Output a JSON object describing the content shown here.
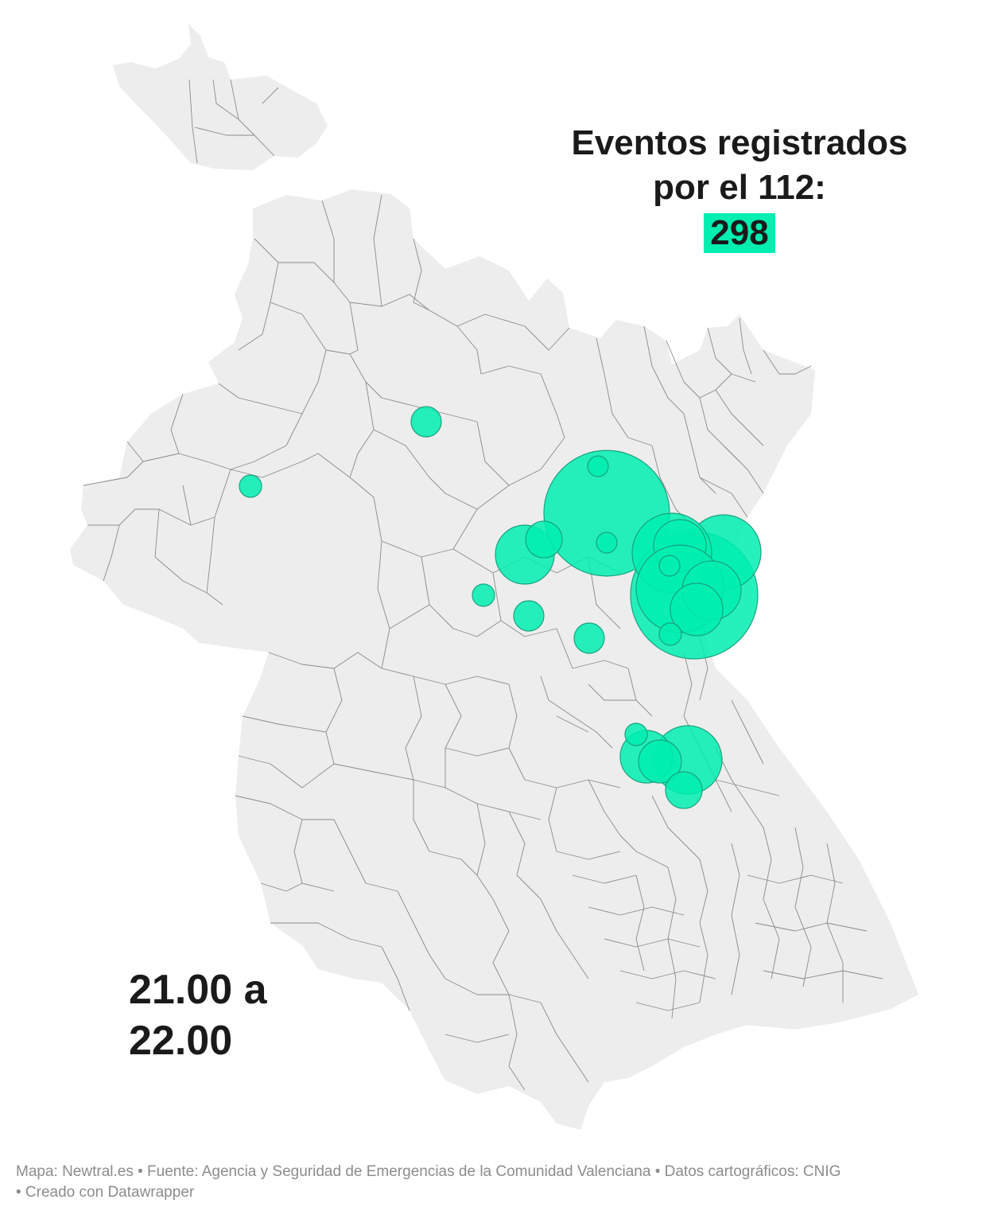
{
  "title": {
    "line1": "Eventos registrados",
    "line2": "por el 112:",
    "count": "298"
  },
  "time_label": {
    "line1": "21.00 a",
    "line2": "22.00"
  },
  "footer": {
    "line1": "Mapa: Newtral.es • Fuente: Agencia y Seguridad de Emergencias de la Comunidad Valenciana • Datos cartográficos: CNIG",
    "line2": " • Creado con Datawrapper"
  },
  "colors": {
    "bubble": "#00eeb0",
    "bubble_stroke": "#19a37f",
    "land": "#ededed",
    "border": "#8a8a8a",
    "count_highlight": "#00eeb0"
  }
}
